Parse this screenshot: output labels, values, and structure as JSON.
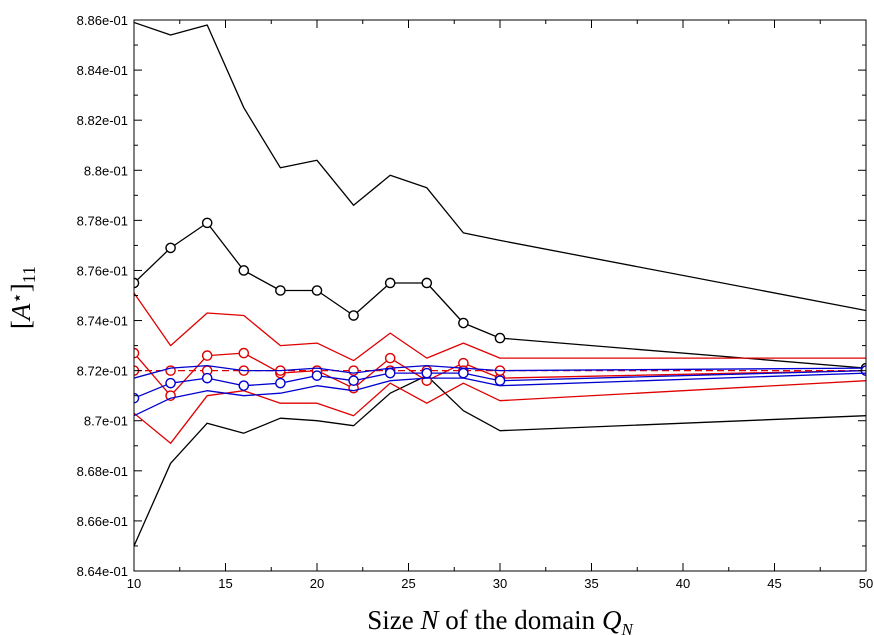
{
  "chart_data": {
    "type": "line",
    "xlabel": "Size N of the domain Q_N",
    "ylabel": "[A*]11",
    "xlim": [
      10,
      50
    ],
    "ylim": [
      0.864,
      0.886
    ],
    "x_ticks": [
      10,
      15,
      20,
      25,
      30,
      35,
      40,
      45,
      50
    ],
    "x_tick_labels": [
      "10",
      "15",
      "20",
      "25",
      "30",
      "35",
      "40",
      "45",
      "50"
    ],
    "y_ticks": [
      0.864,
      0.866,
      0.868,
      0.87,
      0.872,
      0.874,
      0.876,
      0.878,
      0.88,
      0.882,
      0.884,
      0.886
    ],
    "y_tick_labels": [
      "8.64e-01",
      "8.66e-01",
      "8.68e-01",
      "8.7e-01",
      "8.72e-01",
      "8.74e-01",
      "8.76e-01",
      "8.78e-01",
      "8.8e-01",
      "8.82e-01",
      "8.84e-01",
      "8.86e-01"
    ],
    "grid": false,
    "series": [
      {
        "color": "#000000",
        "marker": "none",
        "dashed": false,
        "x": [
          10,
          12,
          14,
          16,
          18,
          20,
          22,
          24,
          26,
          28,
          30,
          50
        ],
        "y": [
          0.8859,
          0.8854,
          0.8858,
          0.8825,
          0.8801,
          0.8804,
          0.8786,
          0.8798,
          0.8793,
          0.8775,
          0.8772,
          0.8744
        ]
      },
      {
        "color": "#000000",
        "marker": "circle",
        "dashed": false,
        "x": [
          10,
          12,
          14,
          16,
          18,
          20,
          22,
          24,
          26,
          28,
          30,
          50
        ],
        "y": [
          0.8755,
          0.8769,
          0.8779,
          0.876,
          0.8752,
          0.8752,
          0.8742,
          0.8755,
          0.8755,
          0.8739,
          0.8733,
          0.8721
        ]
      },
      {
        "color": "#000000",
        "marker": "none",
        "dashed": false,
        "x": [
          10,
          12,
          14,
          16,
          18,
          20,
          22,
          24,
          26,
          28,
          30,
          50
        ],
        "y": [
          0.865,
          0.8683,
          0.8699,
          0.8695,
          0.8701,
          0.87,
          0.8698,
          0.8711,
          0.8718,
          0.8704,
          0.8696,
          0.8702
        ]
      },
      {
        "color": "#e00000",
        "marker": "none",
        "dashed": false,
        "x": [
          10,
          12,
          14,
          16,
          18,
          20,
          22,
          24,
          26,
          28,
          30,
          50
        ],
        "y": [
          0.8751,
          0.873,
          0.8743,
          0.8742,
          0.873,
          0.8731,
          0.8724,
          0.8735,
          0.8725,
          0.8731,
          0.8725,
          0.8725
        ]
      },
      {
        "color": "#e00000",
        "marker": "circle",
        "dashed": false,
        "x": [
          10,
          12,
          14,
          16,
          18,
          20,
          22,
          24,
          26,
          28,
          30,
          50
        ],
        "y": [
          0.8727,
          0.871,
          0.8726,
          0.8727,
          0.8719,
          0.872,
          0.8713,
          0.8725,
          0.8716,
          0.8723,
          0.8717,
          0.872
        ]
      },
      {
        "color": "#e00000",
        "marker": "none",
        "dashed": false,
        "x": [
          10,
          12,
          14,
          16,
          18,
          20,
          22,
          24,
          26,
          28,
          30,
          50
        ],
        "y": [
          0.8703,
          0.8691,
          0.871,
          0.8712,
          0.8707,
          0.8707,
          0.8702,
          0.8715,
          0.8707,
          0.8715,
          0.8708,
          0.8716
        ]
      },
      {
        "color": "#e00000",
        "marker": "circle",
        "dashed": true,
        "x": [
          10,
          12,
          14,
          16,
          18,
          20,
          22,
          24,
          26,
          28,
          30,
          50
        ],
        "y": [
          0.872,
          0.872,
          0.872,
          0.872,
          0.872,
          0.872,
          0.872,
          0.872,
          0.872,
          0.872,
          0.872,
          0.872
        ]
      },
      {
        "color": "#0000d0",
        "marker": "none",
        "dashed": false,
        "x": [
          10,
          12,
          14,
          16,
          18,
          20,
          22,
          24,
          26,
          28,
          30,
          50
        ],
        "y": [
          0.8717,
          0.8721,
          0.8722,
          0.872,
          0.872,
          0.8721,
          0.8719,
          0.8721,
          0.8722,
          0.8721,
          0.872,
          0.8721
        ]
      },
      {
        "color": "#0000d0",
        "marker": "circle",
        "dashed": false,
        "x": [
          10,
          12,
          14,
          16,
          18,
          20,
          22,
          24,
          26,
          28,
          30,
          50
        ],
        "y": [
          0.8709,
          0.8715,
          0.8717,
          0.8714,
          0.8715,
          0.8718,
          0.8716,
          0.8719,
          0.8719,
          0.8719,
          0.8716,
          0.872
        ]
      },
      {
        "color": "#0000d0",
        "marker": "none",
        "dashed": false,
        "x": [
          10,
          12,
          14,
          16,
          18,
          20,
          22,
          24,
          26,
          28,
          30,
          50
        ],
        "y": [
          0.8702,
          0.8709,
          0.8712,
          0.871,
          0.8711,
          0.8714,
          0.8712,
          0.8716,
          0.8717,
          0.8717,
          0.8714,
          0.8719
        ]
      }
    ]
  }
}
